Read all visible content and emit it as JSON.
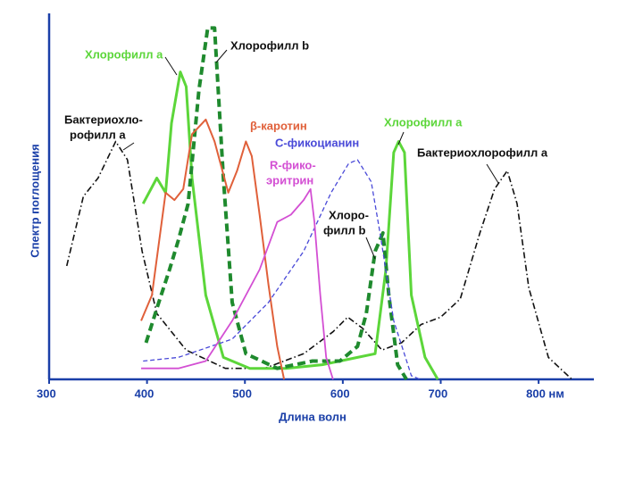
{
  "chart_data": {
    "type": "line",
    "x_label": "Длина волн",
    "y_label": "Спектр поглощения",
    "xlim": [
      300,
      830
    ],
    "ylim": [
      0,
      100
    ],
    "xticks": [
      300,
      400,
      500,
      600,
      700,
      {
        "value": 800,
        "label": "800 нм"
      }
    ],
    "series": [
      {
        "color": "#111111",
        "dash": "dashdot",
        "x": [
          318,
          335,
          350,
          368,
          380,
          395,
          410,
          440,
          480,
          520,
          560,
          590,
          605,
          620,
          640,
          660,
          680,
          700,
          720,
          740,
          755,
          768,
          778,
          790,
          810,
          834
        ],
        "values": [
          31,
          50,
          55,
          65,
          60,
          35,
          18,
          8,
          3,
          3,
          7,
          13,
          17,
          14,
          8,
          10,
          15,
          17,
          22,
          40,
          52,
          57,
          48,
          25,
          6,
          0
        ]
      },
      {
        "color": "#5cd63a",
        "dash": "solid",
        "x": [
          396,
          410,
          419,
          425,
          434,
          440,
          446,
          460,
          478,
          505,
          542,
          579,
          615,
          633,
          644,
          652,
          657,
          663,
          670,
          684,
          697
        ],
        "values": [
          48,
          55,
          51,
          70,
          84,
          80,
          55,
          23,
          6,
          3,
          3,
          4,
          6,
          7,
          30,
          62,
          65,
          62,
          23,
          6,
          0
        ]
      },
      {
        "color": "#1f8a2e",
        "dash": "dashed",
        "x": [
          399,
          412,
          423,
          432,
          442,
          453,
          462,
          469,
          478,
          487,
          501,
          533,
          569,
          597,
          615,
          624,
          633,
          641,
          647,
          656,
          665
        ],
        "values": [
          10,
          21,
          30,
          38,
          48,
          79,
          96,
          96,
          55,
          21,
          7,
          3,
          5,
          5,
          9,
          18,
          35,
          40,
          23,
          4,
          0
        ]
      },
      {
        "color": "#e0603a",
        "dash": "solid",
        "x": [
          394,
          405,
          419,
          428,
          437,
          446,
          460,
          469,
          483,
          492,
          501,
          507,
          515,
          524,
          533,
          540
        ],
        "values": [
          16,
          23,
          51,
          49,
          52,
          67,
          71,
          65,
          51,
          57,
          65,
          61,
          45,
          26,
          9,
          0
        ]
      },
      {
        "color": "#4a4ad8",
        "dash": "thin",
        "x": [
          396,
          432,
          487,
          524,
          560,
          588,
          606,
          615,
          629,
          638,
          652,
          670,
          679
        ],
        "values": [
          5,
          6,
          11,
          21,
          35,
          51,
          59,
          60,
          54,
          40,
          16,
          1,
          0
        ]
      },
      {
        "color": "#d34fd3",
        "dash": "solid",
        "x": [
          394,
          432,
          460,
          487,
          515,
          533,
          547,
          560,
          567,
          571,
          577,
          583,
          590
        ],
        "values": [
          3,
          3,
          5,
          16,
          30,
          43,
          45,
          49,
          52,
          43,
          23,
          6,
          0
        ]
      }
    ],
    "annotations": [
      {
        "lines": [
          "Хлорофилл а"
        ],
        "color": "#5cd63a"
      },
      {
        "lines": [
          "Хлорофилл b"
        ],
        "color": "#111111"
      },
      {
        "lines": [
          "Бактериохло-",
          "рофилл а"
        ],
        "color": "#111111"
      },
      {
        "lines": [
          "β-каротин"
        ],
        "color": "#e0603a"
      },
      {
        "lines": [
          "С-фикоцианин"
        ],
        "color": "#4a4ad8"
      },
      {
        "lines": [
          "R-фико-",
          "эритрин"
        ],
        "color": "#d34fd3"
      },
      {
        "lines": [
          "Хлорофилл а"
        ],
        "color": "#5cd63a"
      },
      {
        "lines": [
          "Бактериохлорофилл а"
        ],
        "color": "#111111"
      },
      {
        "lines": [
          "Хлоро-",
          "филл b"
        ],
        "color": "#111111"
      }
    ]
  }
}
